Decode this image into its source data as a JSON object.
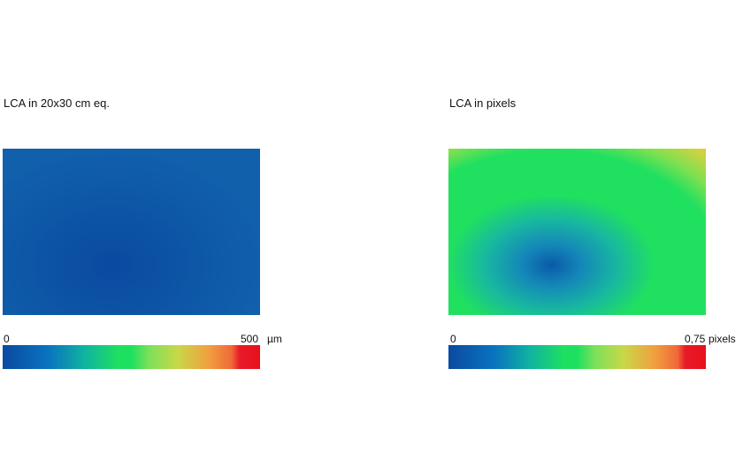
{
  "panels": [
    {
      "title": "LCA in 20x30 cm eq.",
      "colorbar": {
        "min_label": "0",
        "max_label": "500",
        "unit": "µm"
      }
    },
    {
      "title": "LCA in pixels",
      "colorbar": {
        "min_label": "0",
        "max_label": "0,75",
        "unit": "pixels"
      }
    }
  ],
  "chart_data": [
    {
      "type": "heatmap",
      "title": "LCA in 20x30 cm eq.",
      "colorbar_range": [
        0,
        500
      ],
      "colorbar_unit": "µm",
      "colormap": [
        "#0a4aa0",
        "#1ee060",
        "#e8101c"
      ]
    },
    {
      "type": "heatmap",
      "title": "LCA in pixels",
      "colorbar_range": [
        0,
        0.75
      ],
      "colorbar_unit": "pixels",
      "colormap": [
        "#0a4aa0",
        "#1ee060",
        "#e8101c"
      ]
    }
  ]
}
